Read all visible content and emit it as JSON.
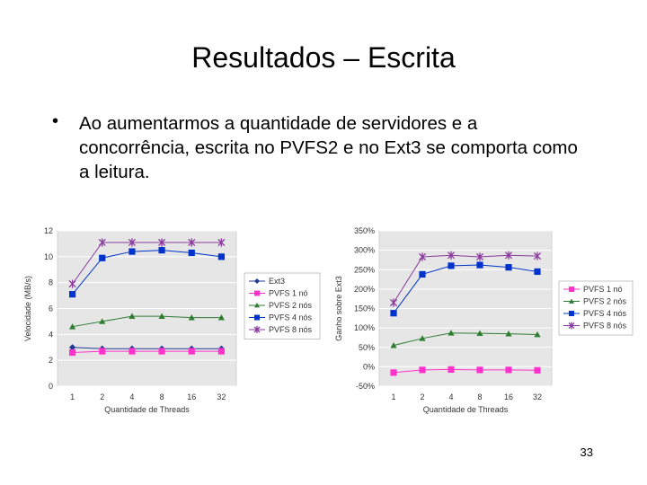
{
  "slide": {
    "title": "Resultados – Escrita",
    "bullet": "Ao aumentarmos a quantidade de servidores e a concorrência, escrita no PVFS2 e no Ext3 se comporta como a leitura.",
    "page_number": "33"
  },
  "chart_data": [
    {
      "type": "line",
      "title": "",
      "xlabel": "Quantidade de Threads",
      "ylabel": "Velocidade (MB/s)",
      "categories": [
        "1",
        "2",
        "4",
        "8",
        "16",
        "32"
      ],
      "ylim": [
        0,
        12
      ],
      "yticks": [
        0,
        2,
        4,
        6,
        8,
        10,
        12
      ],
      "ytick_labels": [
        "0",
        "2",
        "4",
        "6",
        "8",
        "10",
        "12"
      ],
      "grid": true,
      "legend": "right",
      "series": [
        {
          "name": "Ext3",
          "marker": "diamond",
          "color": "#1f3a93",
          "values": [
            3.0,
            2.9,
            2.9,
            2.9,
            2.9,
            2.9
          ]
        },
        {
          "name": "PVFS 1 nó",
          "marker": "square",
          "color": "#ff33cc",
          "values": [
            2.6,
            2.7,
            2.7,
            2.7,
            2.7,
            2.7
          ]
        },
        {
          "name": "PVFS 2 nós",
          "marker": "triangle",
          "color": "#2e7d32",
          "values": [
            4.6,
            5.0,
            5.4,
            5.4,
            5.3,
            5.3
          ]
        },
        {
          "name": "PVFS 4 nós",
          "marker": "square",
          "color": "#0033cc",
          "values": [
            7.1,
            9.9,
            10.4,
            10.5,
            10.3,
            10.0
          ]
        },
        {
          "name": "PVFS 8 nós",
          "marker": "star",
          "color": "#8a3a9e",
          "values": [
            7.9,
            11.1,
            11.1,
            11.1,
            11.1,
            11.1
          ]
        }
      ]
    },
    {
      "type": "line",
      "title": "",
      "xlabel": "Quantidade de Threads",
      "ylabel": "Ganho sobre Ext3",
      "categories": [
        "1",
        "2",
        "4",
        "8",
        "16",
        "32"
      ],
      "ylim": [
        -50,
        350
      ],
      "yticks": [
        -50,
        0,
        50,
        100,
        150,
        200,
        250,
        300,
        350
      ],
      "ytick_labels": [
        "-50%",
        "0%",
        "50%",
        "100%",
        "150%",
        "200%",
        "250%",
        "300%",
        "350%"
      ],
      "grid": true,
      "legend": "right",
      "series": [
        {
          "name": "PVFS 1 nó",
          "marker": "square",
          "color": "#ff33cc",
          "values": [
            -15,
            -8,
            -7,
            -8,
            -8,
            -9
          ]
        },
        {
          "name": "PVFS 2 nós",
          "marker": "triangle",
          "color": "#2e7d32",
          "values": [
            55,
            73,
            87,
            86,
            85,
            83
          ]
        },
        {
          "name": "PVFS 4 nós",
          "marker": "square",
          "color": "#0033cc",
          "values": [
            138,
            238,
            260,
            262,
            256,
            245
          ]
        },
        {
          "name": "PVFS 8 nós",
          "marker": "star",
          "color": "#8a3a9e",
          "values": [
            165,
            283,
            287,
            283,
            287,
            285
          ]
        }
      ]
    }
  ]
}
